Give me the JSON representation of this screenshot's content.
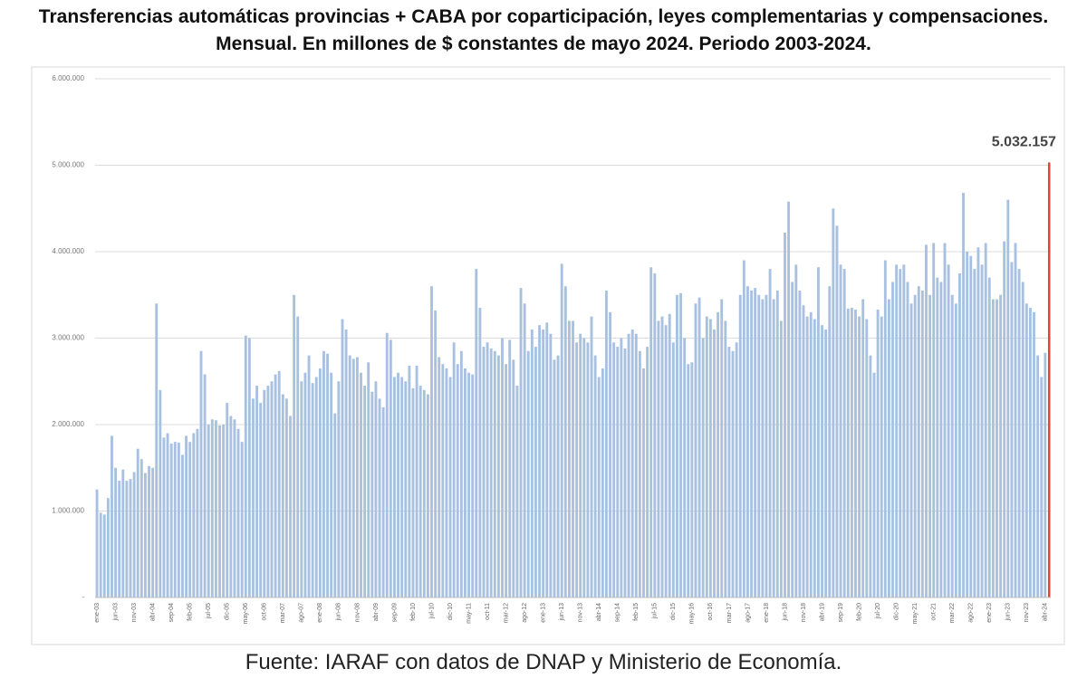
{
  "chart_data": {
    "type": "bar",
    "title": "Transferencias automáticas provincias + CABA por coparticipación, leyes complementarias y compensaciones. Mensual. En millones de $ constantes de mayo 2024. Periodo 2003-2024.",
    "source": "Fuente: IARAF con datos de DNAP y Ministerio de Economía.",
    "color": "#a9c1e0",
    "highlight": {
      "color": "#e0443a",
      "label": "5.032.157"
    },
    "grid": true,
    "ylim": [
      0,
      6000000
    ],
    "yticks": [
      {
        "value": 0,
        "label": "-"
      },
      {
        "value": 1000000,
        "label": "1.000.000"
      },
      {
        "value": 2000000,
        "label": "2.000.000"
      },
      {
        "value": 3000000,
        "label": "3.000.000"
      },
      {
        "value": 4000000,
        "label": "4.000.000"
      },
      {
        "value": 5000000,
        "label": "5.000.000"
      },
      {
        "value": 6000000,
        "label": "6.000.000"
      }
    ],
    "categories": [
      "ene-03",
      null,
      null,
      null,
      null,
      "jun-03",
      null,
      null,
      null,
      null,
      "nov-03",
      null,
      null,
      null,
      null,
      "abr-04",
      null,
      null,
      null,
      null,
      "sep-04",
      null,
      null,
      null,
      null,
      "feb-05",
      null,
      null,
      null,
      null,
      "jul-05",
      null,
      null,
      null,
      null,
      "dic-05",
      null,
      null,
      null,
      null,
      "may-06",
      null,
      null,
      null,
      null,
      "oct-06",
      null,
      null,
      null,
      null,
      "mar-07",
      null,
      null,
      null,
      null,
      "ago-07",
      null,
      null,
      null,
      null,
      "ene-08",
      null,
      null,
      null,
      null,
      "jun-08",
      null,
      null,
      null,
      null,
      "nov-08",
      null,
      null,
      null,
      null,
      "abr-09",
      null,
      null,
      null,
      null,
      "sep-09",
      null,
      null,
      null,
      null,
      "feb-10",
      null,
      null,
      null,
      null,
      "jul-10",
      null,
      null,
      null,
      null,
      "dic-10",
      null,
      null,
      null,
      null,
      "may-11",
      null,
      null,
      null,
      null,
      "oct-11",
      null,
      null,
      null,
      null,
      "mar-12",
      null,
      null,
      null,
      null,
      "ago-12",
      null,
      null,
      null,
      null,
      "ene-13",
      null,
      null,
      null,
      null,
      "jun-13",
      null,
      null,
      null,
      null,
      "nov-13",
      null,
      null,
      null,
      null,
      "abr-14",
      null,
      null,
      null,
      null,
      "sep-14",
      null,
      null,
      null,
      null,
      "feb-15",
      null,
      null,
      null,
      null,
      "jul-15",
      null,
      null,
      null,
      null,
      "dic-15",
      null,
      null,
      null,
      null,
      "may-16",
      null,
      null,
      null,
      null,
      "oct-16",
      null,
      null,
      null,
      null,
      "mar-17",
      null,
      null,
      null,
      null,
      "ago-17",
      null,
      null,
      null,
      null,
      "ene-18",
      null,
      null,
      null,
      null,
      "jun-18",
      null,
      null,
      null,
      null,
      "nov-18",
      null,
      null,
      null,
      null,
      "abr-19",
      null,
      null,
      null,
      null,
      "sep-19",
      null,
      null,
      null,
      null,
      "feb-20",
      null,
      null,
      null,
      null,
      "jul-20",
      null,
      null,
      null,
      null,
      "dic-20",
      null,
      null,
      null,
      null,
      "may-21",
      null,
      null,
      null,
      null,
      "oct-21",
      null,
      null,
      null,
      null,
      "mar-22",
      null,
      null,
      null,
      null,
      "ago-22",
      null,
      null,
      null,
      null,
      "ene-23",
      null,
      null,
      null,
      null,
      "jun-23",
      null,
      null,
      null,
      null,
      "nov-23",
      null,
      null,
      null,
      null,
      "abr-24",
      null
    ],
    "values": [
      1250000,
      980000,
      960000,
      1150000,
      1870000,
      1500000,
      1350000,
      1480000,
      1350000,
      1370000,
      1450000,
      1720000,
      1600000,
      1440000,
      1520000,
      1500000,
      3400000,
      2400000,
      1850000,
      1900000,
      1780000,
      1800000,
      1790000,
      1650000,
      1870000,
      1800000,
      1900000,
      1950000,
      2850000,
      2580000,
      2000000,
      2060000,
      2050000,
      1990000,
      2000000,
      2250000,
      2100000,
      2060000,
      1950000,
      1800000,
      3030000,
      3000000,
      2300000,
      2450000,
      2250000,
      2400000,
      2450000,
      2500000,
      2580000,
      2620000,
      2350000,
      2300000,
      2100000,
      3500000,
      3250000,
      2500000,
      2600000,
      2800000,
      2480000,
      2550000,
      2650000,
      2850000,
      2820000,
      2600000,
      2130000,
      2500000,
      3220000,
      3100000,
      2800000,
      2760000,
      2780000,
      2600000,
      2450000,
      2720000,
      2380000,
      2500000,
      2300000,
      2200000,
      3060000,
      2980000,
      2550000,
      2600000,
      2550000,
      2500000,
      2680000,
      2420000,
      2680000,
      2450000,
      2400000,
      2350000,
      3600000,
      3320000,
      2780000,
      2700000,
      2650000,
      2550000,
      2950000,
      2700000,
      2850000,
      2650000,
      2600000,
      2580000,
      3800000,
      3350000,
      2900000,
      2950000,
      2880000,
      2850000,
      2800000,
      3000000,
      2700000,
      2980000,
      2750000,
      2450000,
      3580000,
      3400000,
      2850000,
      3100000,
      2900000,
      3150000,
      3100000,
      3180000,
      3050000,
      2750000,
      2800000,
      3860000,
      3600000,
      3200000,
      3200000,
      2950000,
      3050000,
      3000000,
      2950000,
      3250000,
      2800000,
      2550000,
      2650000,
      3550000,
      3300000,
      2950000,
      2900000,
      3000000,
      2880000,
      3050000,
      3100000,
      3050000,
      2850000,
      2650000,
      2900000,
      3820000,
      3750000,
      3200000,
      3250000,
      3150000,
      3280000,
      2950000,
      3500000,
      3520000,
      3000000,
      2700000,
      2720000,
      3400000,
      3470000,
      3000000,
      3250000,
      3220000,
      3100000,
      3300000,
      3450000,
      3200000,
      2900000,
      2850000,
      2950000,
      3500000,
      3900000,
      3600000,
      3550000,
      3580000,
      3500000,
      3450000,
      3500000,
      3800000,
      3450000,
      3550000,
      3200000,
      4220000,
      4580000,
      3650000,
      3850000,
      3550000,
      3380000,
      3250000,
      3300000,
      3220000,
      3820000,
      3150000,
      3100000,
      3600000,
      4500000,
      4300000,
      3850000,
      3800000,
      3340000,
      3350000,
      3330000,
      3250000,
      3450000,
      3220000,
      2800000,
      2600000,
      3330000,
      3250000,
      3900000,
      3450000,
      3650000,
      3850000,
      3800000,
      3850000,
      3650000,
      3400000,
      3500000,
      3600000,
      3550000,
      4080000,
      3500000,
      4100000,
      3700000,
      3650000,
      4100000,
      3850000,
      3500000,
      3400000,
      3750000,
      4680000,
      4000000,
      3950000,
      3800000,
      4050000,
      3850000,
      4100000,
      3700000,
      3450000,
      3450000,
      3500000,
      4120000,
      4600000,
      3880000,
      4100000,
      3800000,
      3650000,
      3400000,
      3350000,
      3300000,
      2800000,
      2550000,
      2830000,
      5032157
    ]
  }
}
